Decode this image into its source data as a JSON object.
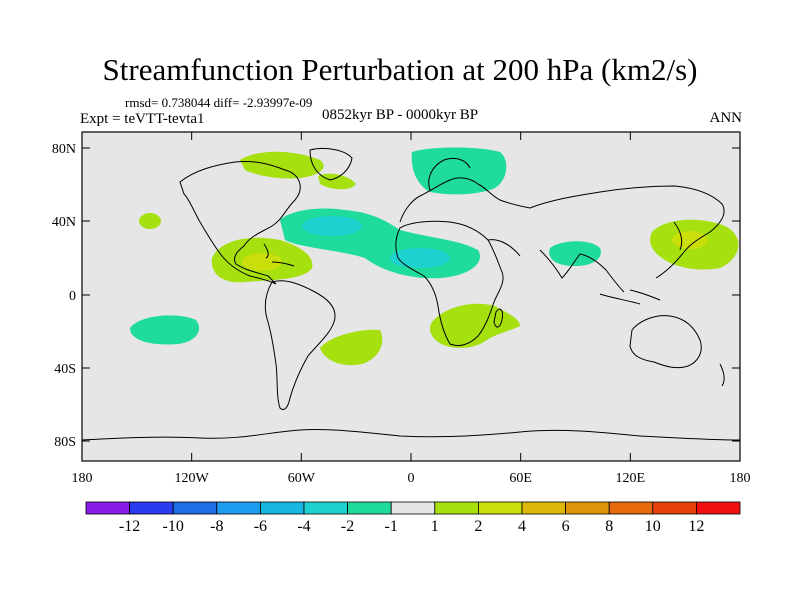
{
  "title": "Streamfunction Perturbation at 200 hPa (km2/s)",
  "stats_line": "rmsd= 0.738044 diff= -2.93997e-09",
  "experiment_line": "Expt = teVTT-tevta1",
  "period_line": "0852kyr BP - 0000kyr BP",
  "season": "ANN",
  "lat_ticks": [
    "80N",
    "40N",
    "0",
    "40S",
    "80S"
  ],
  "lon_ticks": [
    "180",
    "120W",
    "60W",
    "0",
    "60E",
    "120E",
    "180"
  ],
  "colorbar": {
    "labels": [
      "-12",
      "-10",
      "-8",
      "-6",
      "-4",
      "-2",
      "-1",
      "1",
      "2",
      "4",
      "6",
      "8",
      "10",
      "12"
    ],
    "colors": [
      "#8a1ce6",
      "#2a3cf0",
      "#1e6ee8",
      "#1e9cf0",
      "#16b8e0",
      "#1ed2cf",
      "#20dc9c",
      "#e6e6e6",
      "#a6e00e",
      "#cade0a",
      "#dcb80c",
      "#e0960c",
      "#e66a0c",
      "#e6400c",
      "#f01010"
    ]
  },
  "colors": {
    "background": "#e6e6e6",
    "coast": "#000000"
  }
}
